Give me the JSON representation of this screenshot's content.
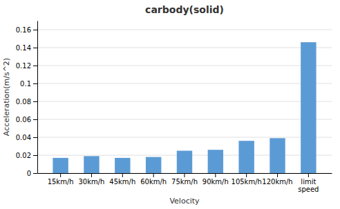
{
  "chart_data": {
    "type": "bar",
    "title": "carbody(solid)",
    "xlabel": "Velocity",
    "ylabel": "Acceleration(m/s^2)",
    "categories": [
      "15km/h",
      "30km/h",
      "45km/h",
      "60km/h",
      "75km/h",
      "90km/h",
      "105km/h",
      "120km/h",
      "limit\nspeed"
    ],
    "values": [
      0.017,
      0.019,
      0.017,
      0.018,
      0.025,
      0.026,
      0.036,
      0.039,
      0.146
    ],
    "color": "#5B9BD5",
    "ylim": [
      0,
      0.17
    ],
    "yticks": [
      0,
      0.02,
      0.04,
      0.06,
      0.08,
      0.1,
      0.12,
      0.14,
      0.16
    ],
    "grid": true
  }
}
